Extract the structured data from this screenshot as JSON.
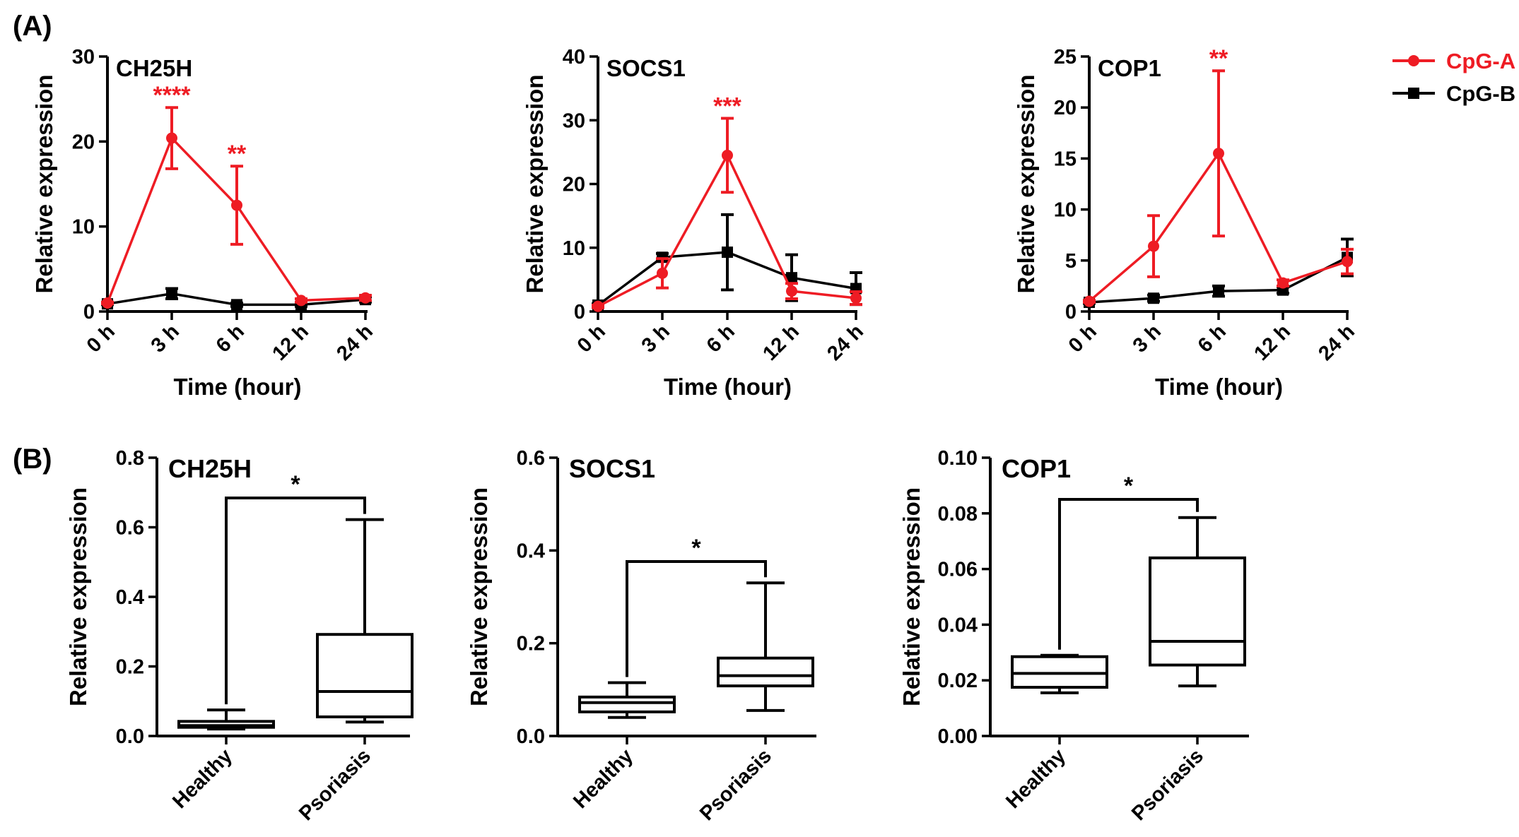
{
  "panel_a_label": "(A)",
  "panel_b_label": "(B)",
  "colors": {
    "cpg_a": "#ee1c24",
    "cpg_b": "#000000"
  },
  "chart_data": [
    {
      "type": "line",
      "panel": "A",
      "title": "CH25H",
      "xlabel": "Time (hour)",
      "ylabel": "Relative expression",
      "categories": [
        "0 h",
        "3 h",
        "6 h",
        "12 h",
        "24 h"
      ],
      "ylim": [
        0,
        30
      ],
      "yticks": [
        0,
        10,
        20,
        30
      ],
      "series": [
        {
          "name": "CpG-A",
          "values": [
            1.0,
            20.4,
            12.5,
            1.3,
            1.6
          ],
          "errors": [
            0.1,
            3.6,
            4.6,
            0.2,
            0.3
          ]
        },
        {
          "name": "CpG-B",
          "values": [
            0.9,
            2.1,
            0.8,
            0.8,
            1.4
          ],
          "errors": [
            0.1,
            0.6,
            0.2,
            0.2,
            0.3
          ]
        }
      ],
      "annotations": [
        {
          "series": 0,
          "index": 1,
          "text": "****"
        },
        {
          "series": 0,
          "index": 2,
          "text": "**"
        }
      ]
    },
    {
      "type": "line",
      "panel": "A",
      "title": "SOCS1",
      "xlabel": "Time (hour)",
      "ylabel": "Relative expression",
      "categories": [
        "0 h",
        "3 h",
        "6 h",
        "12 h",
        "24 h"
      ],
      "ylim": [
        0,
        40
      ],
      "yticks": [
        0,
        10,
        20,
        30,
        40
      ],
      "series": [
        {
          "name": "CpG-A",
          "values": [
            0.8,
            6.0,
            24.5,
            3.2,
            2.1
          ],
          "errors": [
            0.2,
            2.3,
            5.8,
            1.2,
            1.0
          ]
        },
        {
          "name": "CpG-B",
          "values": [
            1.0,
            8.5,
            9.3,
            5.3,
            3.6
          ],
          "errors": [
            0.2,
            0.6,
            5.9,
            3.6,
            2.5
          ]
        }
      ],
      "annotations": [
        {
          "series": 0,
          "index": 2,
          "text": "***"
        }
      ]
    },
    {
      "type": "line",
      "panel": "A",
      "title": "COP1",
      "xlabel": "Time (hour)",
      "ylabel": "Relative expression",
      "categories": [
        "0 h",
        "3 h",
        "6 h",
        "12 h",
        "24 h"
      ],
      "ylim": [
        0,
        25
      ],
      "yticks": [
        0,
        5,
        10,
        15,
        20,
        25
      ],
      "series": [
        {
          "name": "CpG-A",
          "values": [
            1.0,
            6.4,
            15.5,
            2.8,
            4.9
          ],
          "errors": [
            0.1,
            3.0,
            8.1,
            0.3,
            1.2
          ]
        },
        {
          "name": "CpG-B",
          "values": [
            0.9,
            1.3,
            2.0,
            2.1,
            5.3
          ],
          "errors": [
            0.1,
            0.3,
            0.5,
            0.3,
            1.8
          ]
        }
      ],
      "annotations": [
        {
          "series": 0,
          "index": 2,
          "text": "**"
        }
      ],
      "legend": {
        "position": "top-right",
        "entries": [
          "CpG-A",
          "CpG-B"
        ]
      }
    },
    {
      "type": "box",
      "panel": "B",
      "title": "CH25H",
      "ylabel": "Relative expression",
      "categories": [
        "Healthy",
        "Psoriasis"
      ],
      "ylim": [
        0,
        0.8
      ],
      "yticks": [
        "0.0",
        "0.2",
        "0.4",
        "0.6",
        "0.8"
      ],
      "boxes": [
        {
          "min": 0.02,
          "q1": 0.025,
          "median": 0.03,
          "q3": 0.042,
          "max": 0.075
        },
        {
          "min": 0.04,
          "q1": 0.055,
          "median": 0.128,
          "q3": 0.292,
          "max": 0.622
        }
      ],
      "significance": "*"
    },
    {
      "type": "box",
      "panel": "B",
      "title": "SOCS1",
      "ylabel": "Relative expression",
      "categories": [
        "Healthy",
        "Psoriasis"
      ],
      "ylim": [
        0,
        0.6
      ],
      "yticks": [
        "0.0",
        "0.2",
        "0.4",
        "0.6"
      ],
      "boxes": [
        {
          "min": 0.04,
          "q1": 0.052,
          "median": 0.072,
          "q3": 0.084,
          "max": 0.115
        },
        {
          "min": 0.055,
          "q1": 0.108,
          "median": 0.13,
          "q3": 0.168,
          "max": 0.33
        }
      ],
      "significance": "*"
    },
    {
      "type": "box",
      "panel": "B",
      "title": "COP1",
      "ylabel": "Relative expression",
      "categories": [
        "Healthy",
        "Psoriasis"
      ],
      "ylim": [
        0,
        0.1
      ],
      "yticks": [
        "0.00",
        "0.02",
        "0.04",
        "0.06",
        "0.08",
        "0.10"
      ],
      "boxes": [
        {
          "min": 0.0155,
          "q1": 0.0175,
          "median": 0.0225,
          "q3": 0.0285,
          "max": 0.029
        },
        {
          "min": 0.018,
          "q1": 0.0255,
          "median": 0.034,
          "q3": 0.064,
          "max": 0.0785
        }
      ],
      "significance": "*"
    }
  ]
}
